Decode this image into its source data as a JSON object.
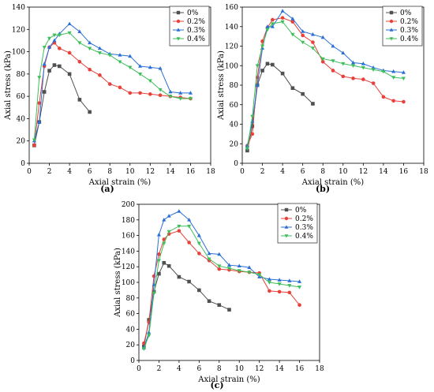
{
  "colors": {
    "0%": "#505050",
    "0.2%": "#e8413a",
    "0.3%": "#2a6fd6",
    "0.4%": "#3cbf5a"
  },
  "chart_data": [
    {
      "type": "line",
      "panel_label": "(a)",
      "xlabel": "Axial strain (%)",
      "ylabel": "Axial stress (kPa)",
      "xlim": [
        0,
        18
      ],
      "ylim": [
        0,
        140
      ],
      "xticks": [
        0,
        2,
        4,
        6,
        8,
        10,
        12,
        14,
        16,
        18
      ],
      "yticks": [
        0,
        20,
        40,
        60,
        80,
        100,
        120,
        140
      ],
      "grid": false,
      "legend_position": "top-right",
      "series": [
        {
          "name": "0%",
          "marker": "square",
          "x": [
            0.5,
            1.0,
            1.5,
            2.0,
            2.5,
            3.0,
            4.0,
            5.0,
            6.0
          ],
          "y": [
            16,
            37,
            64,
            83,
            88,
            87,
            80,
            57,
            46
          ]
        },
        {
          "name": "0.2%",
          "marker": "circle",
          "x": [
            0.5,
            1.0,
            1.5,
            2.0,
            2.5,
            3.0,
            4.0,
            5.0,
            6.0,
            7.0,
            8.0,
            9.0,
            10.0,
            11.0,
            12.0,
            13.0,
            14.0,
            15.0,
            16.0
          ],
          "y": [
            16,
            54,
            87,
            104,
            108,
            103,
            99,
            91,
            84,
            79,
            71,
            68,
            63,
            63,
            62,
            61,
            60,
            59,
            58
          ]
        },
        {
          "name": "0.3%",
          "marker": "triangle-up",
          "x": [
            0.5,
            1.0,
            1.5,
            2.0,
            2.5,
            3.0,
            4.0,
            5.0,
            6.0,
            7.0,
            8.0,
            9.0,
            10.0,
            11.0,
            12.0,
            13.0,
            14.0,
            15.0,
            16.0
          ],
          "y": [
            20,
            37,
            89,
            104,
            110,
            116,
            125,
            118,
            108,
            103,
            98,
            97,
            96,
            87,
            86,
            85,
            64,
            63,
            63
          ]
        },
        {
          "name": "0.4%",
          "marker": "triangle-down",
          "x": [
            0.5,
            1.0,
            1.5,
            2.0,
            2.5,
            3.0,
            4.0,
            5.0,
            6.0,
            7.0,
            8.0,
            9.0,
            10.0,
            11.0,
            12.0,
            13.0,
            14.0,
            15.0,
            16.0
          ],
          "y": [
            21,
            77,
            104,
            112,
            115,
            115,
            117,
            108,
            103,
            99,
            97,
            91,
            86,
            80,
            74,
            66,
            60,
            58,
            58
          ]
        }
      ]
    },
    {
      "type": "line",
      "panel_label": "(b)",
      "xlabel": "Axial strain (%)",
      "ylabel": "Axial stress (kPa)",
      "xlim": [
        0,
        18
      ],
      "ylim": [
        0,
        160
      ],
      "xticks": [
        0,
        2,
        4,
        6,
        8,
        10,
        12,
        14,
        16,
        18
      ],
      "yticks": [
        0,
        20,
        40,
        60,
        80,
        100,
        120,
        140,
        160
      ],
      "grid": false,
      "legend_position": "top-right",
      "series": [
        {
          "name": "0%",
          "marker": "square",
          "x": [
            0.5,
            1.0,
            1.5,
            2.0,
            2.5,
            3.0,
            4.0,
            5.0,
            6.0,
            7.0
          ],
          "y": [
            13,
            38,
            80,
            95,
            102,
            101,
            92,
            77,
            71,
            61
          ]
        },
        {
          "name": "0.2%",
          "marker": "circle",
          "x": [
            0.5,
            1.0,
            1.5,
            2.0,
            2.5,
            3.0,
            4.0,
            5.0,
            6.0,
            7.0,
            8.0,
            9.0,
            10.0,
            11.0,
            12.0,
            13.0,
            14.0,
            15.0,
            16.0
          ],
          "y": [
            18,
            30,
            88,
            125,
            139,
            147,
            149,
            145,
            131,
            124,
            104,
            95,
            89,
            87,
            86,
            82,
            68,
            64,
            63
          ]
        },
        {
          "name": "0.3%",
          "marker": "triangle-up",
          "x": [
            0.5,
            1.0,
            1.5,
            2.0,
            2.5,
            3.0,
            4.0,
            5.0,
            6.0,
            7.0,
            8.0,
            9.0,
            10.0,
            11.0,
            12.0,
            13.0,
            14.0,
            15.0,
            16.0
          ],
          "y": [
            18,
            43,
            80,
            118,
            140,
            140,
            156,
            148,
            135,
            132,
            129,
            120,
            113,
            103,
            102,
            98,
            95,
            94,
            93
          ]
        },
        {
          "name": "0.4%",
          "marker": "triangle-down",
          "x": [
            0.5,
            1.0,
            1.5,
            2.0,
            2.5,
            3.0,
            4.0,
            5.0,
            6.0,
            7.0,
            8.0,
            9.0,
            10.0,
            11.0,
            12.0,
            13.0,
            14.0,
            15.0,
            16.0
          ],
          "y": [
            15,
            48,
            100,
            120,
            137,
            143,
            145,
            132,
            124,
            118,
            107,
            105,
            102,
            100,
            98,
            96,
            94,
            88,
            87
          ]
        }
      ]
    },
    {
      "type": "line",
      "panel_label": "(c)",
      "xlabel": "Axial strain (%)",
      "ylabel": "Axial stress (kPa)",
      "xlim": [
        0,
        18
      ],
      "ylim": [
        0,
        200
      ],
      "xticks": [
        0,
        2,
        4,
        6,
        8,
        10,
        12,
        14,
        16,
        18
      ],
      "yticks": [
        0,
        20,
        40,
        60,
        80,
        100,
        120,
        140,
        160,
        180,
        200
      ],
      "grid": false,
      "legend_position": "top-right",
      "series": [
        {
          "name": "0%",
          "marker": "square",
          "x": [
            0.5,
            1.0,
            1.5,
            2.0,
            2.5,
            3.0,
            4.0,
            5.0,
            6.0,
            7.0,
            8.0,
            9.0
          ],
          "y": [
            18,
            52,
            88,
            111,
            125,
            121,
            107,
            101,
            90,
            76,
            71,
            65
          ]
        },
        {
          "name": "0.2%",
          "marker": "circle",
          "x": [
            0.5,
            1.0,
            1.5,
            2.0,
            2.5,
            3.0,
            4.0,
            5.0,
            6.0,
            7.0,
            8.0,
            9.0,
            10.0,
            11.0,
            12.0,
            13.0,
            14.0,
            15.0,
            16.0
          ],
          "y": [
            22,
            49,
            108,
            136,
            155,
            162,
            166,
            151,
            137,
            128,
            117,
            116,
            114,
            113,
            112,
            89,
            88,
            87,
            71
          ]
        },
        {
          "name": "0.3%",
          "marker": "triangle-up",
          "x": [
            0.5,
            1.0,
            1.5,
            2.0,
            2.5,
            3.0,
            4.0,
            5.0,
            6.0,
            7.0,
            8.0,
            9.0,
            10.0,
            11.0,
            12.0,
            13.0,
            14.0,
            15.0,
            16.0
          ],
          "y": [
            16,
            36,
            97,
            161,
            180,
            185,
            191,
            180,
            160,
            137,
            136,
            122,
            121,
            119,
            107,
            104,
            103,
            102,
            101
          ]
        },
        {
          "name": "0.4%",
          "marker": "triangle-down",
          "x": [
            0.5,
            1.0,
            1.5,
            2.0,
            2.5,
            3.0,
            4.0,
            5.0,
            6.0,
            7.0,
            8.0,
            9.0,
            10.0,
            11.0,
            12.0,
            13.0,
            14.0,
            15.0,
            16.0
          ],
          "y": [
            15,
            32,
            86,
            128,
            150,
            165,
            172,
            172,
            150,
            130,
            121,
            118,
            115,
            113,
            110,
            100,
            98,
            96,
            94
          ]
        }
      ]
    }
  ]
}
